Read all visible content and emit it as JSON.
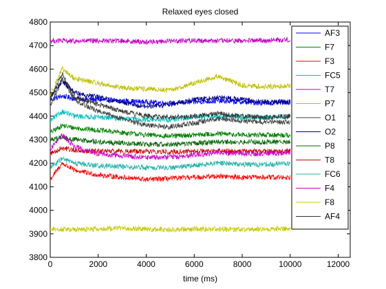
{
  "chart_data": {
    "type": "line",
    "title": "Relaxed eyes closed",
    "xlabel": "time (ms)",
    "ylabel": "",
    "xlim": [
      0,
      12500
    ],
    "ylim": [
      3800,
      4800
    ],
    "xticks": [
      0,
      2000,
      4000,
      6000,
      8000,
      10000,
      12000
    ],
    "yticks": [
      3800,
      3900,
      4000,
      4100,
      4200,
      4300,
      4400,
      4500,
      4600,
      4700,
      4800
    ],
    "xtick_labels": [
      "0",
      "2000",
      "4000",
      "6000",
      "8000",
      "10000",
      "12000"
    ],
    "ytick_labels": [
      "3800",
      "3900",
      "4000",
      "4100",
      "4200",
      "4300",
      "4400",
      "4500",
      "4600",
      "4700",
      "4800"
    ],
    "grid": false,
    "legend_position": "top-right",
    "series": [
      {
        "name": "AF3",
        "color": "#0000ff",
        "x": [
          0,
          500,
          1000,
          2000,
          3000,
          4000,
          5000,
          6000,
          7000,
          8000,
          9000,
          10000
        ],
        "y": [
          4470,
          4485,
          4475,
          4470,
          4465,
          4460,
          4455,
          4460,
          4465,
          4460,
          4455,
          4460
        ]
      },
      {
        "name": "F7",
        "color": "#008000",
        "x": [
          0,
          500,
          1000,
          2000,
          3000,
          4000,
          5000,
          6000,
          7000,
          8000,
          9000,
          10000
        ],
        "y": [
          4330,
          4360,
          4350,
          4340,
          4330,
          4320,
          4315,
          4320,
          4325,
          4320,
          4320,
          4320
        ]
      },
      {
        "name": "F3",
        "color": "#ff0000",
        "x": [
          0,
          500,
          1000,
          2000,
          3000,
          4000,
          5000,
          6000,
          7000,
          8000,
          9000,
          10000
        ],
        "y": [
          4130,
          4200,
          4170,
          4150,
          4140,
          4130,
          4135,
          4140,
          4145,
          4140,
          4140,
          4140
        ]
      },
      {
        "name": "FC5",
        "color": "#00bfbf",
        "x": [
          0,
          500,
          1000,
          2000,
          3000,
          4000,
          5000,
          6000,
          7000,
          8000,
          9000,
          10000
        ],
        "y": [
          4380,
          4420,
          4400,
          4395,
          4390,
          4385,
          4385,
          4395,
          4400,
          4395,
          4395,
          4400
        ]
      },
      {
        "name": "T7",
        "color": "#bf00bf",
        "x": [
          0,
          500,
          1000,
          2000,
          3000,
          4000,
          5000,
          6000,
          7000,
          8000,
          9000,
          10000
        ],
        "y": [
          4720,
          4720,
          4718,
          4720,
          4720,
          4715,
          4720,
          4722,
          4720,
          4720,
          4722,
          4725
        ]
      },
      {
        "name": "P7",
        "color": "#bfbf00",
        "x": [
          0,
          500,
          1000,
          2000,
          3000,
          4000,
          5000,
          6000,
          7000,
          8000,
          9000,
          10000
        ],
        "y": [
          4490,
          4600,
          4560,
          4540,
          4520,
          4515,
          4510,
          4540,
          4570,
          4530,
          4525,
          4530
        ]
      },
      {
        "name": "O1",
        "color": "#404040",
        "x": [
          0,
          500,
          1000,
          2000,
          3000,
          4000,
          5000,
          6000,
          7000,
          8000,
          9000,
          10000
        ],
        "y": [
          4440,
          4560,
          4470,
          4420,
          4390,
          4360,
          4355,
          4370,
          4390,
          4380,
          4375,
          4375
        ]
      },
      {
        "name": "O2",
        "color": "#00008b",
        "x": [
          0,
          500,
          1000,
          2000,
          3000,
          4000,
          5000,
          6000,
          7000,
          8000,
          9000,
          10000
        ],
        "y": [
          4480,
          4550,
          4500,
          4480,
          4460,
          4440,
          4450,
          4470,
          4480,
          4470,
          4460,
          4460
        ]
      },
      {
        "name": "P8",
        "color": "#006400",
        "x": [
          0,
          500,
          1000,
          2000,
          3000,
          4000,
          5000,
          6000,
          7000,
          8000,
          9000,
          10000
        ],
        "y": [
          4300,
          4310,
          4300,
          4290,
          4285,
          4280,
          4280,
          4285,
          4290,
          4290,
          4290,
          4290
        ]
      },
      {
        "name": "T8",
        "color": "#cc0000",
        "x": [
          0,
          500,
          1000,
          2000,
          3000,
          4000,
          5000,
          6000,
          7000,
          8000,
          9000,
          10000
        ],
        "y": [
          4240,
          4265,
          4255,
          4250,
          4250,
          4250,
          4248,
          4250,
          4252,
          4250,
          4250,
          4252
        ]
      },
      {
        "name": "FC6",
        "color": "#20b2aa",
        "x": [
          0,
          500,
          1000,
          2000,
          3000,
          4000,
          5000,
          6000,
          7000,
          8000,
          9000,
          10000
        ],
        "y": [
          4180,
          4220,
          4200,
          4190,
          4185,
          4180,
          4180,
          4190,
          4200,
          4195,
          4195,
          4200
        ]
      },
      {
        "name": "F4",
        "color": "#cc00cc",
        "x": [
          0,
          500,
          1000,
          2000,
          3000,
          4000,
          5000,
          6000,
          7000,
          8000,
          9000,
          10000
        ],
        "y": [
          4260,
          4320,
          4270,
          4240,
          4230,
          4225,
          4225,
          4235,
          4245,
          4240,
          4240,
          4245
        ]
      },
      {
        "name": "F8",
        "color": "#c8c800",
        "x": [
          0,
          500,
          1000,
          2000,
          3000,
          4000,
          5000,
          6000,
          7000,
          8000,
          9000,
          10000
        ],
        "y": [
          3920,
          3920,
          3918,
          3920,
          3925,
          3920,
          3918,
          3920,
          3920,
          3918,
          3920,
          3922
        ]
      },
      {
        "name": "AF4",
        "color": "#333333",
        "x": [
          0,
          500,
          1000,
          2000,
          3000,
          4000,
          5000,
          6000,
          7000,
          8000,
          9000,
          10000
        ],
        "y": [
          4470,
          4580,
          4480,
          4450,
          4420,
          4400,
          4395,
          4400,
          4410,
          4400,
          4395,
          4400
        ]
      }
    ]
  }
}
